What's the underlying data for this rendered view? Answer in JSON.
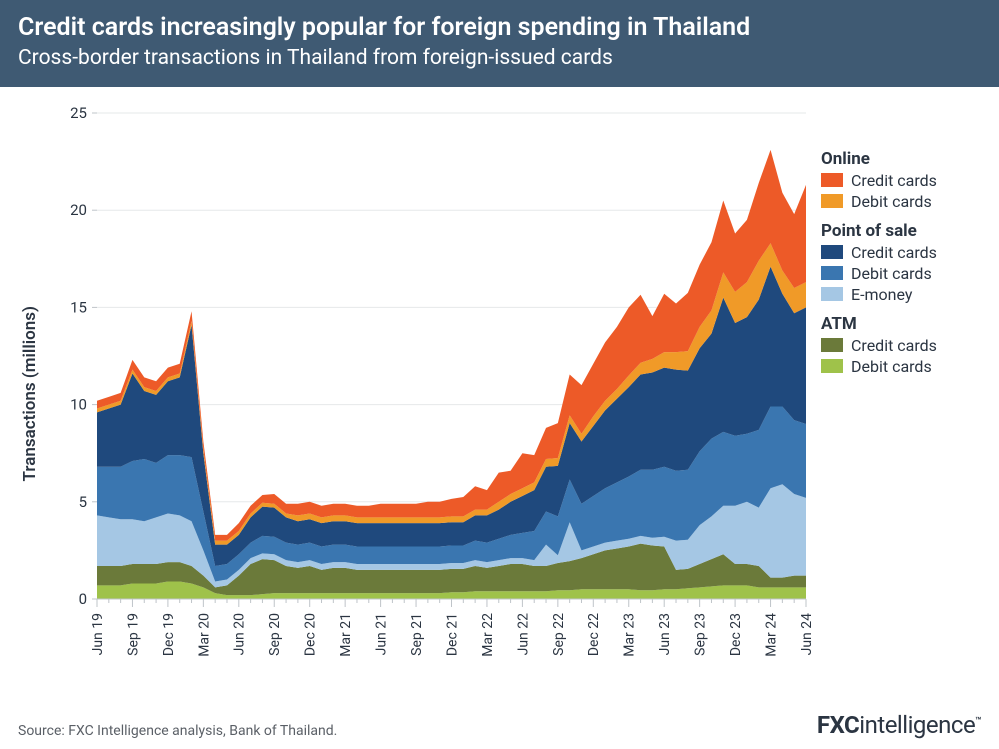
{
  "header": {
    "title": "Credit cards increasingly popular for foreign spending in Thailand",
    "subtitle": "Cross-border transactions in Thailand from foreign-issued cards",
    "bg_color": "#3f5a73"
  },
  "chart": {
    "type": "stacked-area",
    "ylabel": "Transactions (millions)",
    "ylim": [
      0,
      25
    ],
    "ytick_step": 5,
    "yticks": [
      0,
      5,
      10,
      15,
      20,
      25
    ],
    "xlabels": [
      "Jun 19",
      "Sep 19",
      "Dec 19",
      "Mar 20",
      "Jun 20",
      "Sep 20",
      "Dec 20",
      "Mar 21",
      "Jun 21",
      "Sep 21",
      "Dec 21",
      "Mar 22",
      "Jun 22",
      "Sep 22",
      "Dec 22",
      "Mar 23",
      "Jun 23",
      "Sep 23",
      "Dec 23",
      "Mar 24",
      "Jun 24"
    ],
    "xlabel_interval": 3,
    "n_points": 61,
    "series": [
      {
        "key": "atm_debit",
        "label": "Debit cards",
        "group": "ATM",
        "color": "#9fc24a",
        "values": [
          0.7,
          0.7,
          0.7,
          0.8,
          0.8,
          0.8,
          0.9,
          0.9,
          0.8,
          0.6,
          0.3,
          0.2,
          0.2,
          0.2,
          0.25,
          0.3,
          0.3,
          0.3,
          0.3,
          0.3,
          0.3,
          0.3,
          0.3,
          0.3,
          0.3,
          0.3,
          0.3,
          0.3,
          0.3,
          0.3,
          0.35,
          0.35,
          0.4,
          0.4,
          0.4,
          0.4,
          0.4,
          0.4,
          0.4,
          0.45,
          0.45,
          0.5,
          0.5,
          0.5,
          0.5,
          0.5,
          0.45,
          0.45,
          0.5,
          0.5,
          0.55,
          0.6,
          0.65,
          0.7,
          0.7,
          0.7,
          0.6,
          0.6,
          0.6,
          0.6,
          0.6
        ]
      },
      {
        "key": "atm_credit",
        "label": "Credit cards",
        "group": "ATM",
        "color": "#6b7a3a",
        "values": [
          1.0,
          1.0,
          1.0,
          1.0,
          1.0,
          1.0,
          1.0,
          1.0,
          0.9,
          0.6,
          0.3,
          0.5,
          1.0,
          1.6,
          1.8,
          1.7,
          1.4,
          1.3,
          1.4,
          1.2,
          1.3,
          1.3,
          1.2,
          1.2,
          1.2,
          1.2,
          1.2,
          1.2,
          1.2,
          1.2,
          1.2,
          1.2,
          1.3,
          1.2,
          1.3,
          1.4,
          1.4,
          1.3,
          1.3,
          1.4,
          1.5,
          1.6,
          1.8,
          2.0,
          2.1,
          2.2,
          2.4,
          2.3,
          2.2,
          1.0,
          1.0,
          1.2,
          1.4,
          1.6,
          1.1,
          1.1,
          1.1,
          0.5,
          0.5,
          0.6,
          0.6
        ]
      },
      {
        "key": "pos_emoney",
        "label": "E-money",
        "group": "Point of sale",
        "color": "#a5c7e4",
        "values": [
          2.6,
          2.5,
          2.4,
          2.3,
          2.2,
          2.4,
          2.5,
          2.4,
          2.3,
          1.3,
          0.3,
          0.3,
          0.3,
          0.3,
          0.3,
          0.3,
          0.3,
          0.3,
          0.3,
          0.3,
          0.3,
          0.3,
          0.3,
          0.3,
          0.3,
          0.3,
          0.3,
          0.3,
          0.3,
          0.3,
          0.3,
          0.3,
          0.3,
          0.3,
          0.3,
          0.3,
          0.3,
          0.3,
          1.1,
          0.4,
          2.0,
          0.4,
          0.4,
          0.4,
          0.4,
          0.4,
          0.4,
          0.4,
          0.5,
          1.5,
          1.5,
          2.0,
          2.2,
          2.5,
          3.0,
          3.2,
          3.0,
          4.6,
          4.8,
          4.2,
          4.0
        ]
      },
      {
        "key": "pos_debit",
        "label": "Debit cards",
        "group": "Point of sale",
        "color": "#3a76b0",
        "values": [
          2.5,
          2.6,
          2.7,
          3.0,
          3.2,
          2.8,
          3.0,
          3.1,
          3.3,
          2.0,
          0.8,
          0.8,
          0.8,
          0.8,
          0.9,
          0.9,
          0.9,
          0.9,
          0.9,
          0.9,
          0.9,
          0.9,
          0.9,
          0.9,
          0.9,
          0.9,
          0.9,
          0.9,
          0.9,
          0.9,
          0.9,
          0.9,
          1.0,
          1.0,
          1.1,
          1.2,
          1.3,
          1.5,
          1.7,
          2.0,
          2.2,
          2.4,
          2.6,
          2.8,
          3.0,
          3.2,
          3.4,
          3.5,
          3.6,
          3.6,
          3.6,
          3.8,
          4.0,
          3.8,
          3.6,
          3.5,
          4.0,
          4.2,
          4.0,
          3.8,
          3.8
        ]
      },
      {
        "key": "pos_credit",
        "label": "Credit cards",
        "group": "Point of sale",
        "color": "#1f497d",
        "values": [
          2.8,
          3.0,
          3.2,
          4.5,
          3.5,
          3.5,
          3.8,
          4.0,
          6.8,
          3.0,
          1.1,
          1.0,
          1.0,
          1.3,
          1.5,
          1.5,
          1.3,
          1.2,
          1.2,
          1.2,
          1.2,
          1.2,
          1.2,
          1.2,
          1.2,
          1.2,
          1.2,
          1.2,
          1.2,
          1.2,
          1.2,
          1.2,
          1.3,
          1.4,
          1.5,
          1.7,
          1.9,
          2.1,
          2.3,
          2.6,
          2.9,
          3.2,
          3.6,
          4.0,
          4.3,
          4.6,
          4.9,
          5.0,
          5.1,
          5.2,
          5.1,
          5.3,
          5.4,
          6.9,
          5.8,
          6.0,
          6.7,
          7.2,
          5.8,
          5.5,
          6.0
        ]
      },
      {
        "key": "online_debit",
        "label": "Debit cards",
        "group": "Online",
        "color": "#f09a28",
        "values": [
          0.2,
          0.2,
          0.2,
          0.2,
          0.2,
          0.2,
          0.2,
          0.2,
          0.2,
          0.2,
          0.2,
          0.2,
          0.2,
          0.2,
          0.2,
          0.2,
          0.2,
          0.3,
          0.3,
          0.3,
          0.3,
          0.3,
          0.3,
          0.3,
          0.3,
          0.3,
          0.3,
          0.3,
          0.3,
          0.3,
          0.3,
          0.3,
          0.3,
          0.3,
          0.4,
          0.4,
          0.4,
          0.4,
          0.4,
          0.4,
          0.4,
          0.4,
          0.5,
          0.5,
          0.5,
          0.6,
          0.6,
          0.7,
          0.8,
          0.9,
          1.0,
          1.1,
          1.2,
          1.3,
          1.6,
          1.8,
          2.0,
          1.2,
          1.2,
          1.3,
          1.3
        ]
      },
      {
        "key": "online_credit",
        "label": "Credit cards",
        "group": "Online",
        "color": "#ed5a28",
        "values": [
          0.4,
          0.4,
          0.4,
          0.5,
          0.5,
          0.5,
          0.5,
          0.5,
          0.5,
          0.4,
          0.3,
          0.3,
          0.4,
          0.4,
          0.4,
          0.5,
          0.5,
          0.6,
          0.6,
          0.6,
          0.6,
          0.6,
          0.6,
          0.6,
          0.7,
          0.7,
          0.7,
          0.7,
          0.8,
          0.8,
          0.9,
          1.0,
          1.2,
          1.0,
          1.5,
          1.2,
          1.8,
          1.4,
          1.6,
          1.8,
          2.1,
          2.5,
          2.7,
          3.0,
          3.2,
          3.5,
          3.5,
          2.2,
          3.0,
          2.5,
          3.0,
          3.2,
          3.5,
          3.7,
          3.0,
          3.2,
          4.0,
          4.8,
          4.0,
          3.8,
          5.0
        ]
      }
    ],
    "legend_groups": [
      {
        "title": "Online",
        "items": [
          {
            "label": "Credit cards",
            "color": "#ed5a28"
          },
          {
            "label": "Debit cards",
            "color": "#f09a28"
          }
        ]
      },
      {
        "title": "Point of sale",
        "items": [
          {
            "label": "Credit cards",
            "color": "#1f497d"
          },
          {
            "label": "Debit cards",
            "color": "#3a76b0"
          },
          {
            "label": "E-money",
            "color": "#a5c7e4"
          }
        ]
      },
      {
        "title": "ATM",
        "items": [
          {
            "label": "Credit cards",
            "color": "#6b7a3a"
          },
          {
            "label": "Debit cards",
            "color": "#9fc24a"
          }
        ]
      }
    ],
    "background_color": "#ffffff",
    "grid_color": "#e6e8ea",
    "tick_color": "#bfc4c9",
    "axis_text_color": "#2b3542",
    "title_fontsize": 25,
    "subtitle_fontsize": 21,
    "label_fontsize": 17
  },
  "footer": {
    "source": "Source: FXC Intelligence analysis, Bank of Thailand.",
    "brand_strong": "FXC",
    "brand_light": "intelligence"
  }
}
